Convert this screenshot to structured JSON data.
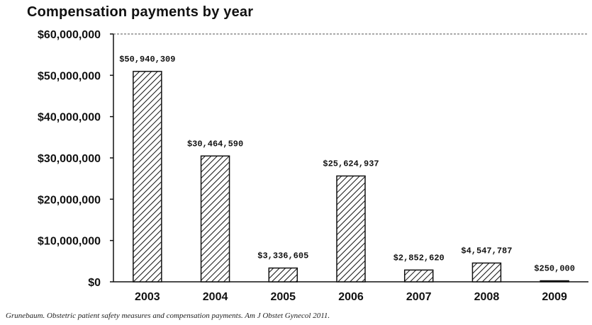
{
  "chart_data": {
    "type": "bar",
    "title": "Compensation payments by year",
    "xlabel": "",
    "ylabel": "",
    "categories": [
      "2003",
      "2004",
      "2005",
      "2006",
      "2007",
      "2008",
      "2009"
    ],
    "values": [
      50940309,
      30464590,
      3336605,
      25624937,
      2852620,
      4547787,
      250000
    ],
    "value_labels": [
      "$50,940,309",
      "$30,464,590",
      "$3,336,605",
      "$25,624,937",
      "$2,852,620",
      "$4,547,787",
      "$250,000"
    ],
    "ylim": [
      0,
      60000000
    ],
    "y_ticks": [
      0,
      10000000,
      20000000,
      30000000,
      40000000,
      50000000,
      60000000
    ],
    "y_tick_labels": [
      "$0",
      "$10,000,000",
      "$20,000,000",
      "$30,000,000",
      "$40,000,000",
      "$50,000,000",
      "$60,000,000"
    ],
    "grid": false,
    "bar_fill": "diagonal hatch",
    "colors": {
      "bar_stroke": "#111111",
      "hatch": "#111111",
      "background": "#ffffff"
    }
  },
  "source_note": "Grunebaum. Obstetric patient safety measures and compensation payments. Am J Obstet Gynecol 2011."
}
